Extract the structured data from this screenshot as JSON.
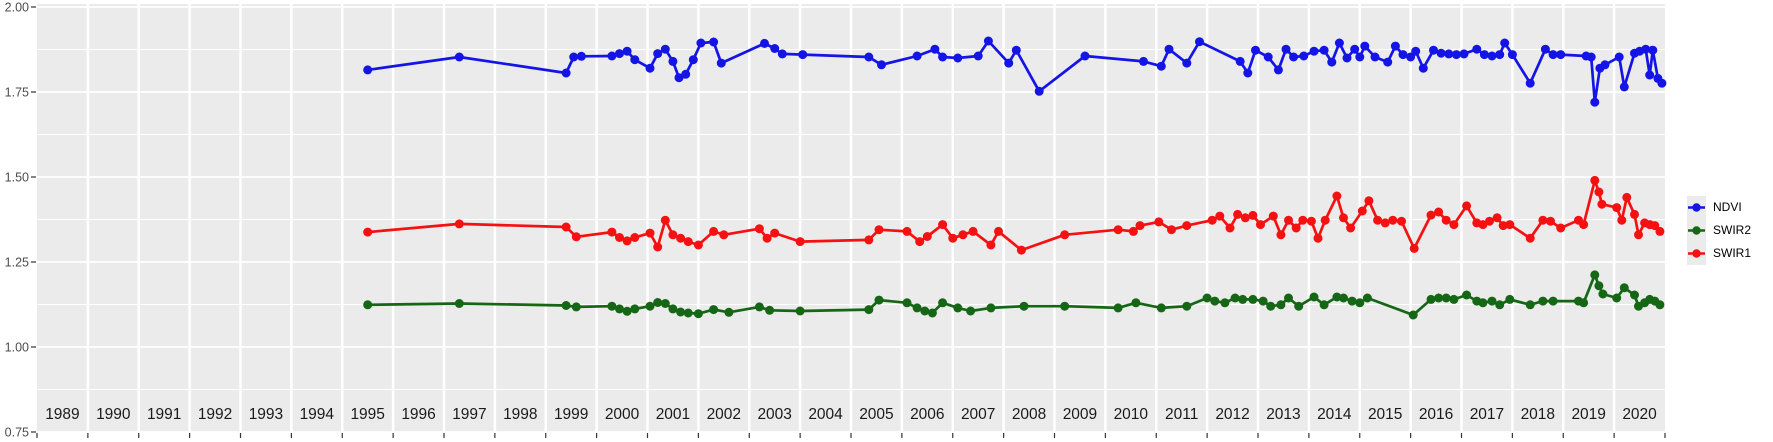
{
  "colors": {
    "page_bg": "#ffffff",
    "panel_bg": "#ebebeb",
    "grid": "#ffffff",
    "axis_text": "#4d4d4d",
    "tick": "#333333",
    "year_label": "#1a1a1a"
  },
  "chart_data": {
    "type": "line",
    "title": "",
    "xlabel": "",
    "ylabel": "",
    "legend_position": "right",
    "grid": "on",
    "x_axis": {
      "years": [
        "1989",
        "1990",
        "1991",
        "1992",
        "1993",
        "1994",
        "1995",
        "1996",
        "1997",
        "1998",
        "1999",
        "2000",
        "2001",
        "2002",
        "2003",
        "2004",
        "2005",
        "2006",
        "2007",
        "2008",
        "2009",
        "2010",
        "2011",
        "2012",
        "2013",
        "2014",
        "2015",
        "2016",
        "2017",
        "2018",
        "2019",
        "2020"
      ],
      "range": [
        1989,
        2021
      ]
    },
    "y_axis": {
      "ticks": [
        "2.00",
        "1.75",
        "1.50",
        "1.25",
        "1.00",
        "0.75"
      ],
      "min": 0.75,
      "max": 2.0,
      "major_step": 0.25,
      "minor_step": 0.125
    },
    "series": [
      {
        "name": "NDVI",
        "color": "#1414e6",
        "points": [
          [
            1995.5,
            1.815
          ],
          [
            1997.3,
            1.853
          ],
          [
            1999.4,
            1.806
          ],
          [
            1999.55,
            1.853
          ],
          [
            1999.7,
            1.855
          ],
          [
            2000.3,
            1.856
          ],
          [
            2000.45,
            1.863
          ],
          [
            2000.6,
            1.87
          ],
          [
            2000.75,
            1.845
          ],
          [
            2001.05,
            1.82
          ],
          [
            2001.2,
            1.863
          ],
          [
            2001.35,
            1.876
          ],
          [
            2001.5,
            1.84
          ],
          [
            2001.62,
            1.792
          ],
          [
            2001.75,
            1.802
          ],
          [
            2001.9,
            1.845
          ],
          [
            2002.05,
            1.894
          ],
          [
            2002.3,
            1.897
          ],
          [
            2002.45,
            1.835
          ],
          [
            2003.3,
            1.893
          ],
          [
            2003.5,
            1.878
          ],
          [
            2003.65,
            1.862
          ],
          [
            2004.05,
            1.86
          ],
          [
            2005.35,
            1.853
          ],
          [
            2005.6,
            1.83
          ],
          [
            2006.3,
            1.856
          ],
          [
            2006.65,
            1.876
          ],
          [
            2006.8,
            1.853
          ],
          [
            2007.1,
            1.85
          ],
          [
            2007.5,
            1.856
          ],
          [
            2007.7,
            1.9
          ],
          [
            2008.1,
            1.835
          ],
          [
            2008.25,
            1.873
          ],
          [
            2008.7,
            1.752
          ],
          [
            2009.6,
            1.856
          ],
          [
            2010.75,
            1.84
          ],
          [
            2011.1,
            1.826
          ],
          [
            2011.25,
            1.876
          ],
          [
            2011.6,
            1.835
          ],
          [
            2011.85,
            1.898
          ],
          [
            2012.65,
            1.84
          ],
          [
            2012.8,
            1.806
          ],
          [
            2012.95,
            1.873
          ],
          [
            2013.2,
            1.853
          ],
          [
            2013.4,
            1.815
          ],
          [
            2013.55,
            1.876
          ],
          [
            2013.7,
            1.853
          ],
          [
            2013.9,
            1.856
          ],
          [
            2014.1,
            1.87
          ],
          [
            2014.3,
            1.873
          ],
          [
            2014.45,
            1.838
          ],
          [
            2014.6,
            1.894
          ],
          [
            2014.75,
            1.85
          ],
          [
            2014.9,
            1.876
          ],
          [
            2015.0,
            1.853
          ],
          [
            2015.1,
            1.885
          ],
          [
            2015.3,
            1.853
          ],
          [
            2015.55,
            1.838
          ],
          [
            2015.7,
            1.885
          ],
          [
            2015.85,
            1.86
          ],
          [
            2016.0,
            1.853
          ],
          [
            2016.1,
            1.87
          ],
          [
            2016.25,
            1.82
          ],
          [
            2016.45,
            1.873
          ],
          [
            2016.6,
            1.864
          ],
          [
            2016.75,
            1.862
          ],
          [
            2016.9,
            1.86
          ],
          [
            2017.05,
            1.862
          ],
          [
            2017.3,
            1.876
          ],
          [
            2017.45,
            1.86
          ],
          [
            2017.6,
            1.856
          ],
          [
            2017.75,
            1.86
          ],
          [
            2017.85,
            1.894
          ],
          [
            2018.0,
            1.86
          ],
          [
            2018.35,
            1.776
          ],
          [
            2018.65,
            1.876
          ],
          [
            2018.8,
            1.86
          ],
          [
            2018.95,
            1.86
          ],
          [
            2019.45,
            1.856
          ],
          [
            2019.55,
            1.853
          ],
          [
            2019.62,
            1.72
          ],
          [
            2019.72,
            1.82
          ],
          [
            2019.82,
            1.83
          ],
          [
            2020.1,
            1.853
          ],
          [
            2020.2,
            1.765
          ],
          [
            2020.4,
            1.864
          ],
          [
            2020.5,
            1.87
          ],
          [
            2020.62,
            1.876
          ],
          [
            2020.7,
            1.8
          ],
          [
            2020.76,
            1.873
          ],
          [
            2020.86,
            1.79
          ],
          [
            2020.94,
            1.776
          ]
        ]
      },
      {
        "name": "SWIR2",
        "color": "#156615",
        "points": [
          [
            1995.5,
            1.124
          ],
          [
            1997.3,
            1.128
          ],
          [
            1999.4,
            1.122
          ],
          [
            1999.6,
            1.118
          ],
          [
            2000.3,
            1.12
          ],
          [
            2000.45,
            1.112
          ],
          [
            2000.6,
            1.105
          ],
          [
            2000.75,
            1.112
          ],
          [
            2001.05,
            1.12
          ],
          [
            2001.2,
            1.131
          ],
          [
            2001.35,
            1.128
          ],
          [
            2001.5,
            1.112
          ],
          [
            2001.65,
            1.103
          ],
          [
            2001.8,
            1.1
          ],
          [
            2002.0,
            1.098
          ],
          [
            2002.3,
            1.11
          ],
          [
            2002.6,
            1.102
          ],
          [
            2003.2,
            1.118
          ],
          [
            2003.4,
            1.108
          ],
          [
            2004.0,
            1.106
          ],
          [
            2005.35,
            1.11
          ],
          [
            2005.55,
            1.138
          ],
          [
            2006.1,
            1.13
          ],
          [
            2006.3,
            1.115
          ],
          [
            2006.45,
            1.106
          ],
          [
            2006.6,
            1.1
          ],
          [
            2006.8,
            1.13
          ],
          [
            2007.1,
            1.115
          ],
          [
            2007.35,
            1.106
          ],
          [
            2007.75,
            1.115
          ],
          [
            2008.4,
            1.12
          ],
          [
            2009.2,
            1.12
          ],
          [
            2010.25,
            1.115
          ],
          [
            2010.6,
            1.13
          ],
          [
            2011.1,
            1.115
          ],
          [
            2011.6,
            1.12
          ],
          [
            2012.0,
            1.144
          ],
          [
            2012.15,
            1.135
          ],
          [
            2012.35,
            1.13
          ],
          [
            2012.55,
            1.144
          ],
          [
            2012.7,
            1.14
          ],
          [
            2012.9,
            1.14
          ],
          [
            2013.1,
            1.135
          ],
          [
            2013.25,
            1.12
          ],
          [
            2013.45,
            1.124
          ],
          [
            2013.6,
            1.144
          ],
          [
            2013.8,
            1.12
          ],
          [
            2014.1,
            1.147
          ],
          [
            2014.3,
            1.124
          ],
          [
            2014.55,
            1.147
          ],
          [
            2014.68,
            1.144
          ],
          [
            2014.85,
            1.135
          ],
          [
            2015.0,
            1.13
          ],
          [
            2015.15,
            1.144
          ],
          [
            2016.05,
            1.094
          ],
          [
            2016.4,
            1.14
          ],
          [
            2016.55,
            1.144
          ],
          [
            2016.7,
            1.144
          ],
          [
            2016.85,
            1.14
          ],
          [
            2017.1,
            1.153
          ],
          [
            2017.3,
            1.135
          ],
          [
            2017.42,
            1.13
          ],
          [
            2017.6,
            1.135
          ],
          [
            2017.75,
            1.124
          ],
          [
            2017.95,
            1.14
          ],
          [
            2018.35,
            1.124
          ],
          [
            2018.6,
            1.135
          ],
          [
            2018.8,
            1.135
          ],
          [
            2019.3,
            1.135
          ],
          [
            2019.4,
            1.13
          ],
          [
            2019.62,
            1.212
          ],
          [
            2019.7,
            1.18
          ],
          [
            2019.78,
            1.156
          ],
          [
            2020.05,
            1.144
          ],
          [
            2020.2,
            1.174
          ],
          [
            2020.4,
            1.153
          ],
          [
            2020.48,
            1.12
          ],
          [
            2020.6,
            1.13
          ],
          [
            2020.7,
            1.14
          ],
          [
            2020.8,
            1.135
          ],
          [
            2020.9,
            1.124
          ]
        ]
      },
      {
        "name": "SWIR1",
        "color": "#f51111",
        "points": [
          [
            1995.5,
            1.338
          ],
          [
            1997.3,
            1.362
          ],
          [
            1999.4,
            1.353
          ],
          [
            1999.6,
            1.324
          ],
          [
            2000.3,
            1.338
          ],
          [
            2000.45,
            1.322
          ],
          [
            2000.6,
            1.312
          ],
          [
            2000.75,
            1.322
          ],
          [
            2001.05,
            1.335
          ],
          [
            2001.2,
            1.294
          ],
          [
            2001.35,
            1.373
          ],
          [
            2001.5,
            1.33
          ],
          [
            2001.65,
            1.32
          ],
          [
            2001.8,
            1.31
          ],
          [
            2002.0,
            1.3
          ],
          [
            2002.3,
            1.34
          ],
          [
            2002.5,
            1.33
          ],
          [
            2003.2,
            1.348
          ],
          [
            2003.35,
            1.32
          ],
          [
            2003.5,
            1.335
          ],
          [
            2004.0,
            1.31
          ],
          [
            2005.35,
            1.315
          ],
          [
            2005.55,
            1.345
          ],
          [
            2006.1,
            1.34
          ],
          [
            2006.35,
            1.31
          ],
          [
            2006.5,
            1.325
          ],
          [
            2006.8,
            1.36
          ],
          [
            2007.0,
            1.32
          ],
          [
            2007.2,
            1.33
          ],
          [
            2007.4,
            1.34
          ],
          [
            2007.75,
            1.3
          ],
          [
            2007.9,
            1.34
          ],
          [
            2008.35,
            1.285
          ],
          [
            2009.2,
            1.33
          ],
          [
            2010.25,
            1.345
          ],
          [
            2010.55,
            1.34
          ],
          [
            2010.68,
            1.357
          ],
          [
            2011.05,
            1.368
          ],
          [
            2011.3,
            1.345
          ],
          [
            2011.6,
            1.357
          ],
          [
            2012.1,
            1.373
          ],
          [
            2012.25,
            1.385
          ],
          [
            2012.45,
            1.35
          ],
          [
            2012.6,
            1.39
          ],
          [
            2012.75,
            1.38
          ],
          [
            2012.9,
            1.387
          ],
          [
            2013.05,
            1.36
          ],
          [
            2013.3,
            1.385
          ],
          [
            2013.45,
            1.33
          ],
          [
            2013.6,
            1.373
          ],
          [
            2013.75,
            1.35
          ],
          [
            2013.88,
            1.373
          ],
          [
            2014.05,
            1.37
          ],
          [
            2014.18,
            1.32
          ],
          [
            2014.32,
            1.373
          ],
          [
            2014.55,
            1.444
          ],
          [
            2014.68,
            1.38
          ],
          [
            2014.82,
            1.35
          ],
          [
            2015.05,
            1.4
          ],
          [
            2015.18,
            1.43
          ],
          [
            2015.35,
            1.373
          ],
          [
            2015.5,
            1.365
          ],
          [
            2015.65,
            1.373
          ],
          [
            2015.82,
            1.37
          ],
          [
            2016.07,
            1.29
          ],
          [
            2016.4,
            1.388
          ],
          [
            2016.55,
            1.397
          ],
          [
            2016.7,
            1.373
          ],
          [
            2016.85,
            1.36
          ],
          [
            2017.1,
            1.415
          ],
          [
            2017.3,
            1.365
          ],
          [
            2017.42,
            1.36
          ],
          [
            2017.55,
            1.37
          ],
          [
            2017.7,
            1.38
          ],
          [
            2017.82,
            1.357
          ],
          [
            2017.95,
            1.36
          ],
          [
            2018.35,
            1.32
          ],
          [
            2018.6,
            1.373
          ],
          [
            2018.75,
            1.37
          ],
          [
            2018.95,
            1.35
          ],
          [
            2019.3,
            1.373
          ],
          [
            2019.4,
            1.36
          ],
          [
            2019.62,
            1.49
          ],
          [
            2019.7,
            1.456
          ],
          [
            2019.76,
            1.42
          ],
          [
            2020.05,
            1.41
          ],
          [
            2020.15,
            1.373
          ],
          [
            2020.25,
            1.44
          ],
          [
            2020.4,
            1.39
          ],
          [
            2020.48,
            1.33
          ],
          [
            2020.6,
            1.365
          ],
          [
            2020.7,
            1.36
          ],
          [
            2020.8,
            1.357
          ],
          [
            2020.9,
            1.34
          ]
        ]
      }
    ]
  }
}
